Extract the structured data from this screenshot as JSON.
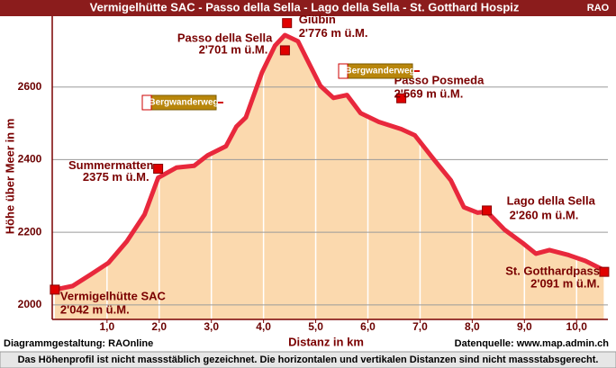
{
  "chart_data": {
    "type": "area",
    "title": "Vermigelhütte SAC - Passo della Sella -  Lago della Sella - St. Gotthard Hospiz",
    "badge": "RAO",
    "x_label": "Distanz in km",
    "y_label": "Höhe über Meer in m",
    "x": [
      0,
      0.34,
      0.69,
      1.03,
      1.38,
      1.72,
      1.98,
      2.33,
      2.67,
      2.93,
      3.28,
      3.48,
      3.66,
      3.97,
      4.22,
      4.41,
      4.66,
      4.83,
      5.09,
      5.34,
      5.6,
      5.86,
      6.21,
      6.64,
      6.9,
      7.24,
      7.59,
      7.84,
      8.1,
      8.28,
      8.62,
      8.97,
      9.22,
      9.48,
      9.83,
      10.17,
      10.52
    ],
    "values": [
      2042,
      2052,
      2084,
      2116,
      2175,
      2249,
      2350,
      2378,
      2383,
      2412,
      2437,
      2491,
      2516,
      2640,
      2714,
      2743,
      2726,
      2677,
      2603,
      2570,
      2578,
      2528,
      2504,
      2484,
      2467,
      2405,
      2343,
      2269,
      2254,
      2257,
      2207,
      2170,
      2141,
      2151,
      2138,
      2121,
      2096
    ],
    "color": "#e8283c",
    "fill": "#fbd9ae",
    "xlim": [
      -0.05,
      10.6
    ],
    "ylim": [
      1960,
      2795
    ],
    "xticks": [
      {
        "value": 1,
        "label": "1,0"
      },
      {
        "value": 2,
        "label": "2,0"
      },
      {
        "value": 3,
        "label": "3,0"
      },
      {
        "value": 4,
        "label": "4,0"
      },
      {
        "value": 5,
        "label": "5,0"
      },
      {
        "value": 6,
        "label": "6,0"
      },
      {
        "value": 7,
        "label": "7,0"
      },
      {
        "value": 8,
        "label": "8,0"
      },
      {
        "value": 9,
        "label": "9,0"
      },
      {
        "value": 10,
        "label": "10,0"
      }
    ],
    "yticks": [
      2000,
      2200,
      2400,
      2600
    ],
    "grid": true,
    "waypoints": [
      {
        "name": "Vermigelhütte SAC",
        "x": 0,
        "value": 2042,
        "value_label": "2'042 m ü.M."
      },
      {
        "name": "Summermatten",
        "x": 1.98,
        "value": 2375,
        "value_label": "2375 m ü.M."
      },
      {
        "name": "Passo della Sella",
        "x": 4.41,
        "value": 2701,
        "value_label": "2'701 m ü.M."
      },
      {
        "name": "Giübin",
        "x": 4.45,
        "value": 2776,
        "value_label": "2'776 m ü.M."
      },
      {
        "name": "Passo Posmeda",
        "x": 6.64,
        "value": 2569,
        "value_label": "2'569 m ü.M."
      },
      {
        "name": "Lago della Sella",
        "x": 8.28,
        "value": 2260,
        "value_label": "2'260 m ü.M."
      },
      {
        "name": "St. Gotthardpass",
        "x": 10.53,
        "value": 2091,
        "value_label": "2'091 m ü.M."
      }
    ],
    "signs": [
      "Bergwanderweg",
      "Bergwanderweg"
    ],
    "credit": "Diagrammgestaltung: RAOnline",
    "source": "Datenquelle: www.map.admin.ch",
    "footnote": "Das Höhenprofil ist nicht massstäblich gezeichnet. Die horizontalen und vertikalen Distanzen sind nicht massstabsgerecht."
  }
}
